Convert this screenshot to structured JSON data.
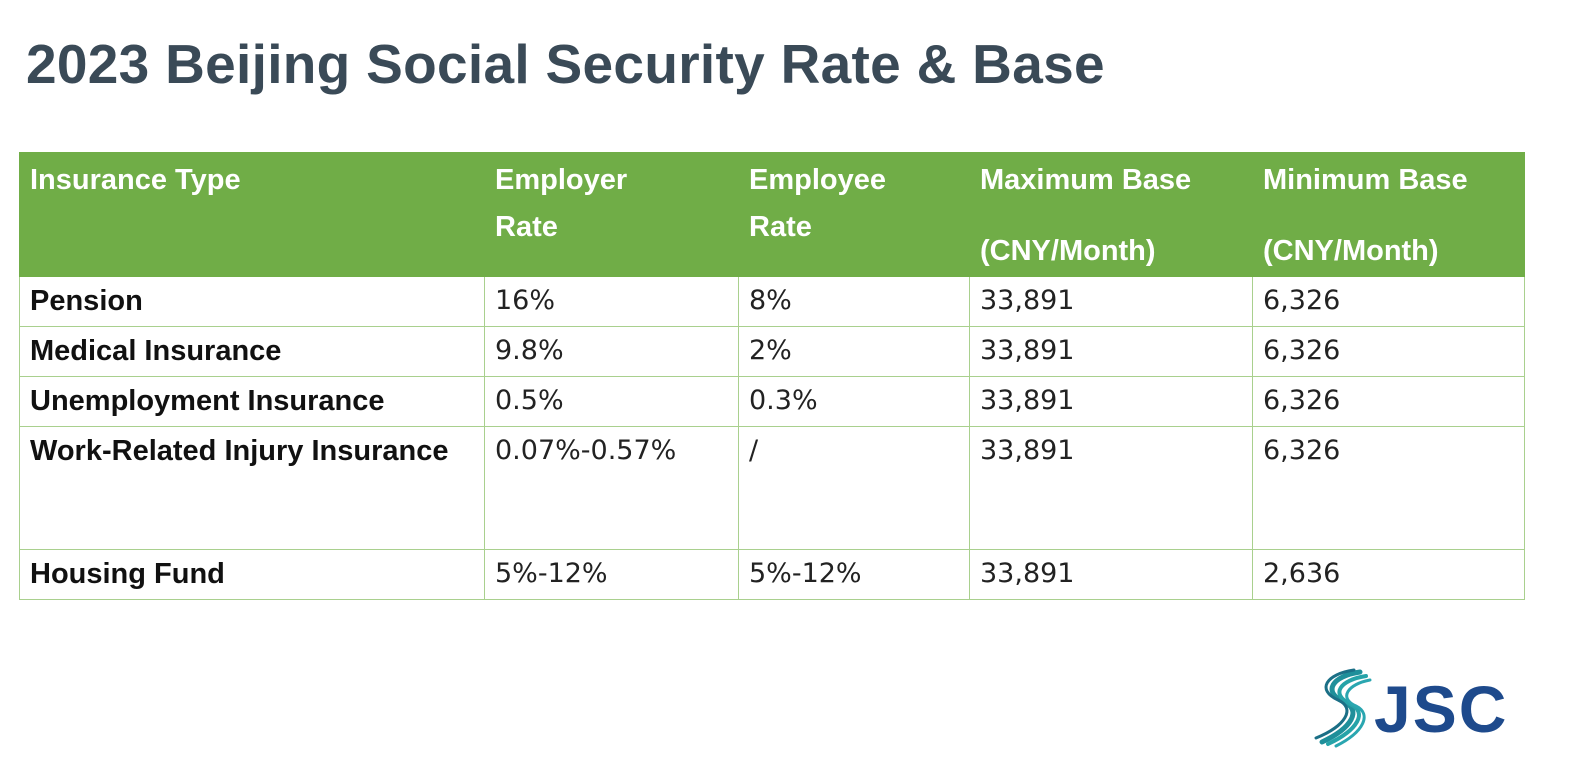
{
  "title": "2023 Beijing Social Security Rate & Base",
  "table": {
    "headers": {
      "type": "Insurance Type",
      "employer": [
        "Employer",
        "Rate"
      ],
      "employee": [
        "Employee",
        "Rate"
      ],
      "max": [
        "Maximum Base",
        "(CNY/Month)"
      ],
      "min": [
        "Minimum Base",
        "(CNY/Month)"
      ]
    },
    "rows": [
      {
        "type": "Pension",
        "employer": "16%",
        "employee": "8%",
        "max": "33,891",
        "min": "6,326"
      },
      {
        "type": "Medical Insurance",
        "employer": "9.8%",
        "employee": "2%",
        "max": "33,891",
        "min": "6,326"
      },
      {
        "type": "Unemployment Insurance",
        "employer": "0.5%",
        "employee": "0.3%",
        "max": "33,891",
        "min": "6,326"
      },
      {
        "type": "Work-Related Injury Insurance",
        "employer": "0.07%-0.57%",
        "employee": "/",
        "max": "33,891",
        "min": "6,326"
      },
      {
        "type": "Housing Fund",
        "employer": "5%-12%",
        "employee": "5%-12%",
        "max": "33,891",
        "min": "2,636"
      }
    ]
  },
  "logo": {
    "text": "JSC",
    "colors": {
      "text": "#1e4a8c",
      "swoosh": "#1f8f9a"
    }
  },
  "colors": {
    "header_bg": "#70ad47",
    "border": "#a9d08e",
    "title": "#3a4a57"
  }
}
